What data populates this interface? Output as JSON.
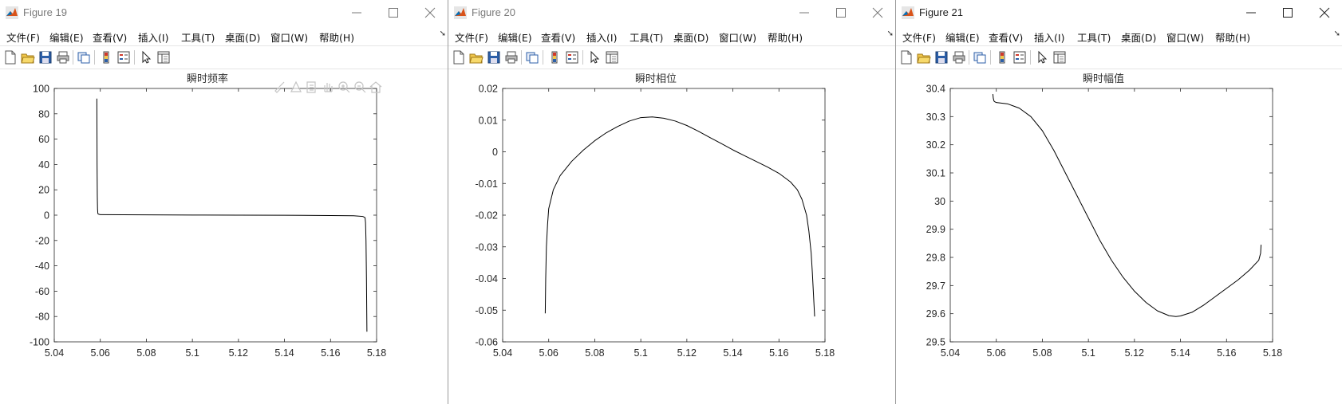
{
  "menus": [
    "文件(F)",
    "编辑(E)",
    "查看(V)",
    "插入(I)",
    "工具(T)",
    "桌面(D)",
    "窗口(W)",
    "帮助(H)"
  ],
  "menu_overflow_icon": "double-chevron-icon",
  "toolbar_icons": [
    "new-figure-icon",
    "open-file-icon",
    "save-icon",
    "print-icon",
    "link-plot-icon",
    "insert-colorbar-icon",
    "insert-legend-icon",
    "edit-plot-arrow-icon",
    "property-inspector-icon"
  ],
  "axes_toolbar_icons": [
    "brush-icon",
    "data-tips-icon",
    "export-icon",
    "pan-hand-icon",
    "zoom-in-icon",
    "zoom-out-icon",
    "home-icon"
  ],
  "windows": [
    {
      "title": "Figure 19",
      "axes_title": "瞬时频率",
      "xticks": [
        "5.04",
        "5.06",
        "5.08",
        "5.1",
        "5.12",
        "5.14",
        "5.16",
        "5.18"
      ],
      "yticks": [
        "100",
        "80",
        "60",
        "40",
        "20",
        "0",
        "-20",
        "-40",
        "-60",
        "-80",
        "-100"
      ]
    },
    {
      "title": "Figure 20",
      "axes_title": "瞬时相位",
      "xticks": [
        "5.04",
        "5.06",
        "5.08",
        "5.1",
        "5.12",
        "5.14",
        "5.16",
        "5.18"
      ],
      "yticks": [
        "0.02",
        "0.01",
        "0",
        "-0.01",
        "-0.02",
        "-0.03",
        "-0.04",
        "-0.05",
        "-0.06"
      ]
    },
    {
      "title": "Figure 21",
      "axes_title": "瞬时幅值",
      "xticks": [
        "5.04",
        "5.06",
        "5.08",
        "5.1",
        "5.12",
        "5.14",
        "5.16",
        "5.18"
      ],
      "yticks": [
        "30.4",
        "30.3",
        "30.2",
        "30.1",
        "30",
        "29.9",
        "29.8",
        "29.7",
        "29.6",
        "29.5"
      ]
    }
  ],
  "chart_data": [
    {
      "type": "line",
      "title": "瞬时频率",
      "xlim": [
        5.04,
        5.18
      ],
      "ylim": [
        -100,
        100
      ],
      "grid": false,
      "series": [
        {
          "x": [
            5.0585,
            5.0586,
            5.0587,
            5.0588,
            5.0589,
            5.059,
            5.0595,
            5.06,
            5.07,
            5.08,
            5.1,
            5.12,
            5.14,
            5.16,
            5.17,
            5.174,
            5.175,
            5.1752,
            5.1754,
            5.1756,
            5.1758
          ],
          "y": [
            92,
            40,
            15,
            5,
            2,
            1,
            0.6,
            0.4,
            0.3,
            0.2,
            0.1,
            0.0,
            -0.1,
            -0.3,
            -0.5,
            -1.0,
            -2,
            -6,
            -20,
            -50,
            -92
          ]
        }
      ]
    },
    {
      "type": "line",
      "title": "瞬时相位",
      "xlim": [
        5.04,
        5.18
      ],
      "ylim": [
        -0.06,
        0.02
      ],
      "grid": false,
      "series": [
        {
          "x": [
            5.0585,
            5.0587,
            5.059,
            5.0595,
            5.06,
            5.062,
            5.065,
            5.07,
            5.075,
            5.08,
            5.085,
            5.09,
            5.095,
            5.1,
            5.105,
            5.11,
            5.115,
            5.12,
            5.125,
            5.13,
            5.135,
            5.14,
            5.145,
            5.15,
            5.155,
            5.16,
            5.165,
            5.168,
            5.17,
            5.172,
            5.173,
            5.174,
            5.1745,
            5.175,
            5.1755
          ],
          "y": [
            -0.051,
            -0.04,
            -0.03,
            -0.023,
            -0.018,
            -0.012,
            -0.0075,
            -0.003,
            0.0005,
            0.0035,
            0.006,
            0.008,
            0.0097,
            0.0108,
            0.011,
            0.0106,
            0.0097,
            0.0083,
            0.0065,
            0.0045,
            0.0026,
            0.0006,
            -0.0012,
            -0.003,
            -0.0048,
            -0.0068,
            -0.0095,
            -0.012,
            -0.015,
            -0.02,
            -0.025,
            -0.032,
            -0.038,
            -0.045,
            -0.052
          ]
        }
      ]
    },
    {
      "type": "line",
      "title": "瞬时幅值",
      "xlim": [
        5.04,
        5.18
      ],
      "ylim": [
        29.5,
        30.4
      ],
      "grid": false,
      "series": [
        {
          "x": [
            5.0585,
            5.0587,
            5.059,
            5.0595,
            5.06,
            5.065,
            5.07,
            5.075,
            5.08,
            5.085,
            5.09,
            5.095,
            5.1,
            5.105,
            5.11,
            5.115,
            5.12,
            5.125,
            5.13,
            5.135,
            5.138,
            5.14,
            5.145,
            5.15,
            5.155,
            5.16,
            5.165,
            5.17,
            5.174,
            5.1748,
            5.175
          ],
          "y": [
            30.38,
            30.365,
            30.355,
            30.352,
            30.35,
            30.345,
            30.33,
            30.3,
            30.25,
            30.18,
            30.1,
            30.02,
            29.94,
            29.86,
            29.79,
            29.73,
            29.68,
            29.64,
            29.61,
            29.593,
            29.59,
            29.592,
            29.605,
            29.63,
            29.66,
            29.69,
            29.72,
            29.755,
            29.79,
            29.815,
            29.845
          ]
        }
      ]
    }
  ]
}
